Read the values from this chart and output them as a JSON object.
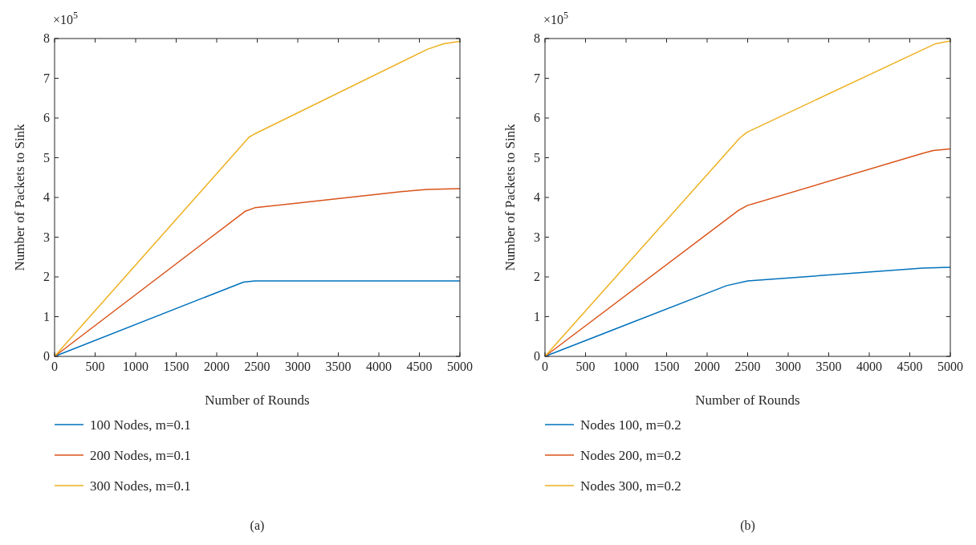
{
  "chart_data": [
    {
      "type": "line",
      "xlabel": "Number of Rounds",
      "ylabel": "Number of Packets to Sink",
      "annotations": [
        "×10$^{5}$",
        "(a)"
      ],
      "xlim": [
        0,
        5000
      ],
      "ylim": [
        0,
        8
      ],
      "xticks": [
        0,
        500,
        1000,
        1500,
        2000,
        2500,
        3000,
        3500,
        4000,
        4500,
        5000
      ],
      "yticks": [
        0,
        1,
        2,
        3,
        4,
        5,
        6,
        7,
        8
      ],
      "legend": "bottom",
      "grid": false,
      "series": [
        {
          "name": "100 Nodes, m=0.1",
          "color": "#0072bd",
          "x": [
            0,
            2330,
            2470,
            2600,
            5000
          ],
          "values": [
            0,
            1.87,
            1.9,
            1.9,
            1.9
          ]
        },
        {
          "name": "200 Nodes, m=0.1",
          "color": "#d95319",
          "x": [
            0,
            2350,
            2470,
            4300,
            4600,
            5000
          ],
          "values": [
            0,
            3.65,
            3.74,
            4.15,
            4.2,
            4.22
          ]
        },
        {
          "name": "300 Nodes, m=0.1",
          "color": "#edb120",
          "x": [
            0,
            2400,
            2460,
            4600,
            4800,
            5000
          ],
          "values": [
            0,
            5.52,
            5.59,
            7.73,
            7.87,
            7.93
          ]
        }
      ]
    },
    {
      "type": "line",
      "xlabel": "Number of Rounds",
      "ylabel": "Number of Packets to Sink",
      "annotations": [
        "×10$^{5}$",
        "(b)"
      ],
      "xlim": [
        0,
        5000
      ],
      "ylim": [
        0,
        8
      ],
      "xticks": [
        0,
        500,
        1000,
        1500,
        2000,
        2500,
        3000,
        3500,
        4000,
        4500,
        5000
      ],
      "yticks": [
        0,
        1,
        2,
        3,
        4,
        5,
        6,
        7,
        8
      ],
      "legend": "bottom",
      "grid": false,
      "series": [
        {
          "name": "Nodes 100, m=0.2",
          "color": "#0072bd",
          "x": [
            0,
            2240,
            2500,
            4660,
            5000
          ],
          "values": [
            0,
            1.78,
            1.9,
            2.22,
            2.24
          ]
        },
        {
          "name": "Nodes 200, m=0.2",
          "color": "#d95319",
          "x": [
            0,
            2390,
            2500,
            4660,
            4790,
            5000
          ],
          "values": [
            0,
            3.68,
            3.8,
            5.11,
            5.18,
            5.22
          ]
        },
        {
          "name": "Nodes 300, m=0.2",
          "color": "#edb120",
          "x": [
            0,
            2400,
            2490,
            4660,
            4820,
            5000
          ],
          "values": [
            0,
            5.49,
            5.64,
            7.72,
            7.87,
            7.94
          ]
        }
      ]
    }
  ]
}
